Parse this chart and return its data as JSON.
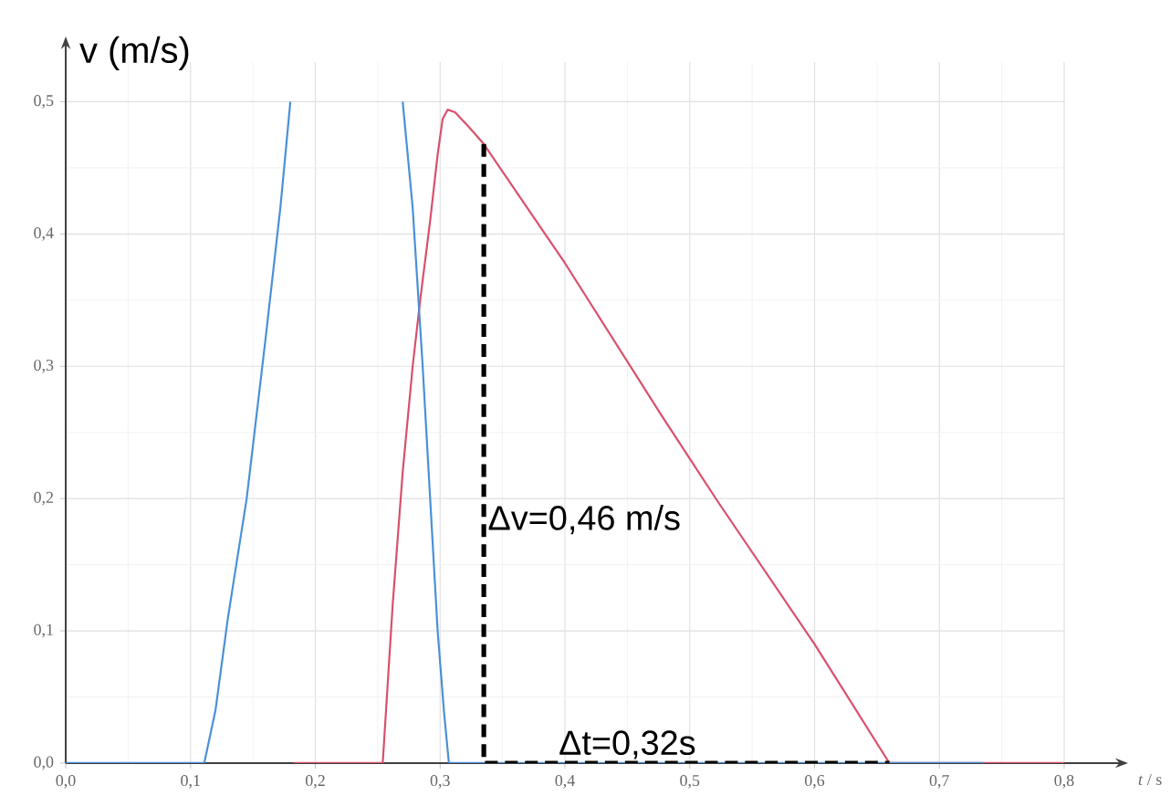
{
  "chart_data": {
    "type": "line",
    "ylabel": "v (m/s)",
    "xlabel": "*t* / s",
    "xlim": [
      0,
      0.8
    ],
    "ylim": [
      0,
      0.53
    ],
    "xticks": [
      {
        "value": 0,
        "label": "0,0"
      },
      {
        "value": 0.1,
        "label": "0,1"
      },
      {
        "value": 0.2,
        "label": "0,2"
      },
      {
        "value": 0.3,
        "label": "0,3"
      },
      {
        "value": 0.4,
        "label": "0,4"
      },
      {
        "value": 0.5,
        "label": "0,5"
      },
      {
        "value": 0.6,
        "label": "0,6"
      },
      {
        "value": 0.7,
        "label": "0,7"
      },
      {
        "value": 0.8,
        "label": "0,8"
      }
    ],
    "yticks": [
      {
        "value": 0,
        "label": "0,0"
      },
      {
        "value": 0.1,
        "label": "0,1"
      },
      {
        "value": 0.2,
        "label": "0,2"
      },
      {
        "value": 0.3,
        "label": "0,3"
      },
      {
        "value": 0.4,
        "label": "0,4"
      },
      {
        "value": 0.5,
        "label": "0,5"
      }
    ],
    "grid": true,
    "marker": "none",
    "series": [
      {
        "color": "#d9506a",
        "line_style": "solid",
        "x": [
          0.183,
          0.254,
          0.262,
          0.27,
          0.278,
          0.284,
          0.292,
          0.298,
          0.302,
          0.306,
          0.312,
          0.322,
          0.335,
          0.4,
          0.478,
          0.523,
          0.6,
          0.66,
          0.8
        ],
        "values": [
          0,
          0,
          0.12,
          0.22,
          0.3,
          0.35,
          0.41,
          0.46,
          0.487,
          0.494,
          0.492,
          0.482,
          0.468,
          0.378,
          0.262,
          0.197,
          0.09,
          0,
          0
        ]
      },
      {
        "color": "#4a90d9",
        "line_style": "solid",
        "x": [
          0,
          0.111,
          0.12,
          0.13,
          0.145,
          0.16,
          0.172,
          0.18,
          0.22,
          0.27,
          0.278,
          0.286,
          0.292,
          0.298,
          0.303,
          0.307,
          0.735
        ],
        "values": [
          0,
          0,
          0.04,
          0.11,
          0.2,
          0.32,
          0.42,
          0.5,
          null,
          0.5,
          0.42,
          0.3,
          0.2,
          0.1,
          0.04,
          0,
          0
        ]
      },
      {
        "type": "line",
        "color": "#000000",
        "line_style": "dashed",
        "x": [
          0.335,
          0.335,
          0.66
        ],
        "values": [
          0.468,
          0,
          0
        ]
      }
    ],
    "annotations": [
      {
        "text": "Δv=0,46 m/s",
        "x": 0.335,
        "y": 0.17
      },
      {
        "text": "Δt=0,32s",
        "x": 0.45,
        "y": 0
      }
    ]
  }
}
